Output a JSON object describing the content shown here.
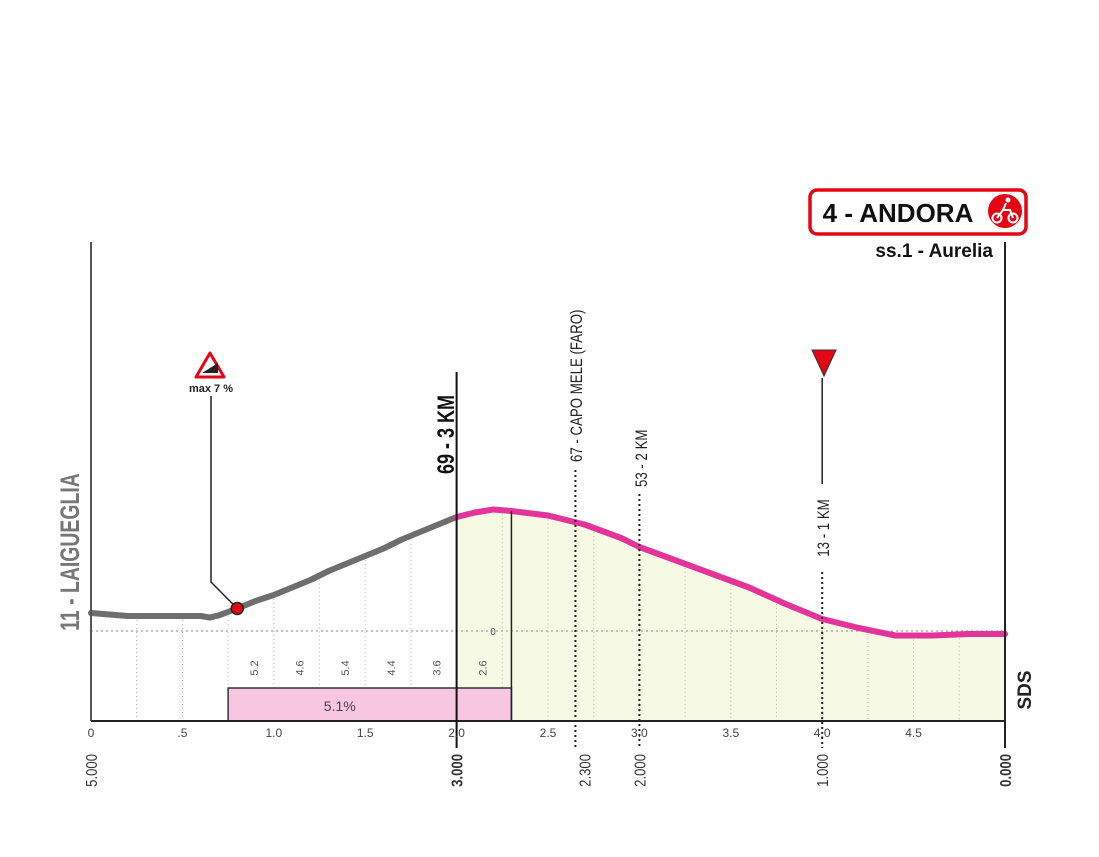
{
  "chart_data": {
    "type": "area",
    "title": "",
    "xlabel": "",
    "ylabel": "",
    "xlim": [
      0,
      5.0
    ],
    "x_ticks": [
      "0",
      ".5",
      "1.0",
      "1.5",
      "2.0",
      "2.5",
      "3.0",
      "3.5",
      "4.0",
      "4.5"
    ],
    "x_tick_values": [
      0,
      0.5,
      1.0,
      1.5,
      2.0,
      2.5,
      3.0,
      3.5,
      4.0,
      4.5
    ],
    "remaining_km_labels": [
      {
        "x": 0,
        "label": "5.000"
      },
      {
        "x": 2.0,
        "label": "3.000"
      },
      {
        "x": 2.7,
        "label": "2.300"
      },
      {
        "x": 3.0,
        "label": "2.000"
      },
      {
        "x": 4.0,
        "label": "1.000"
      },
      {
        "x": 5.0,
        "label": "0.000"
      }
    ],
    "zero_label": "0",
    "profile": {
      "x": [
        0,
        0.1,
        0.2,
        0.3,
        0.4,
        0.5,
        0.6,
        0.65,
        0.7,
        0.8,
        0.9,
        1.0,
        1.1,
        1.2,
        1.3,
        1.4,
        1.5,
        1.6,
        1.7,
        1.8,
        1.9,
        2.0,
        2.1,
        2.2,
        2.3,
        2.5,
        2.7,
        2.9,
        3.0,
        3.2,
        3.4,
        3.6,
        3.8,
        4.0,
        4.2,
        4.4,
        4.6,
        4.8,
        5.0
      ],
      "y": [
        12,
        11,
        10,
        10,
        10,
        10,
        10,
        9,
        10.5,
        15,
        20,
        24,
        29,
        34,
        40,
        45,
        50,
        55,
        61,
        66,
        71,
        76,
        79,
        81,
        80,
        77,
        71,
        62,
        56,
        47,
        38,
        29,
        18,
        8,
        2,
        -3,
        -3,
        -2,
        -2
      ]
    },
    "segment_gradients": [
      {
        "label": "5.2",
        "x": 1.0
      },
      {
        "label": "4.6",
        "x": 1.25
      },
      {
        "label": "5.4",
        "x": 1.5
      },
      {
        "label": "4.4",
        "x": 1.75
      },
      {
        "label": "3.6",
        "x": 2.0
      },
      {
        "label": "2.6",
        "x": 2.25
      }
    ],
    "climb_box": {
      "label": "5.1%",
      "x_start": 0.75,
      "x_end": 2.3
    },
    "finale_start_x": 2.0,
    "finale_color": "#e3349a",
    "climb_color": "#6e6e6e",
    "finale_fill": "#f6f9e4",
    "climb_box_fill": "#f7c6e1",
    "annotations": {
      "start_label": "11 - LAIGUEGLIA",
      "three_km": "69 - 3 KM",
      "capo_mele": "67 - CAPO MELE (FARO)",
      "two_km": "53 - 2 KM",
      "one_km": "13 - 1 KM",
      "max_gradient": "max 7 %",
      "sds": "SDS"
    },
    "finish": {
      "title": "4 - ANDORA",
      "subtitle": "ss.1 - Aurelia",
      "icon": "cyclist-finish-icon",
      "color": "#e30613"
    }
  }
}
